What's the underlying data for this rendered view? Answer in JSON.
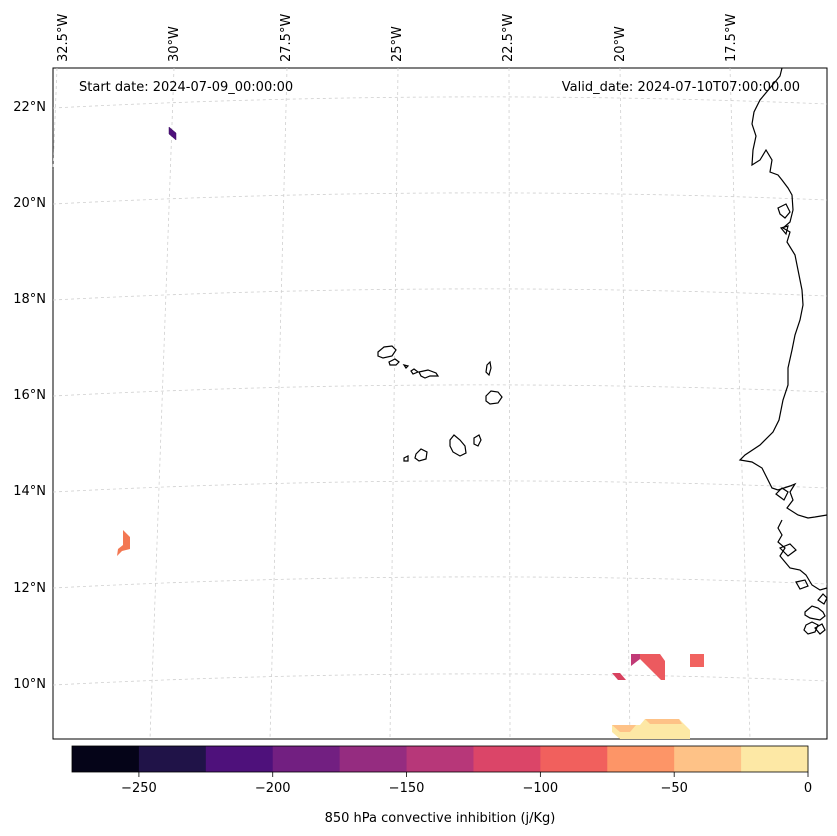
{
  "header": {
    "start_date": "Start date: 2024-07-09_00:00:00",
    "valid_date": "Valid_date: 2024-07-10T07:00:00.00"
  },
  "longitude_ticks": [
    "32.5°W",
    "30°W",
    "27.5°W",
    "25°W",
    "22.5°W",
    "20°W",
    "17.5°W"
  ],
  "latitude_ticks": [
    "22°N",
    "20°N",
    "18°N",
    "16°N",
    "14°N",
    "12°N",
    "10°N"
  ],
  "colorbar": {
    "label": "850 hPa convective inhibition (j/Kg)",
    "tick_labels": [
      "−250",
      "−200",
      "−150",
      "−100",
      "−50",
      "0"
    ],
    "bounds": [
      -275,
      -250,
      -225,
      -200,
      -175,
      -150,
      -125,
      -100,
      -75,
      -50,
      -25,
      0
    ],
    "colors": [
      "#050418",
      "#201348",
      "#4e117b",
      "#721f81",
      "#952c80",
      "#b73779",
      "#db4568",
      "#f1605d",
      "#fd9567",
      "#fec287",
      "#fde8a5"
    ]
  },
  "colors": {
    "coastline": "#000000",
    "gridlines": "#cfcfcf"
  }
}
